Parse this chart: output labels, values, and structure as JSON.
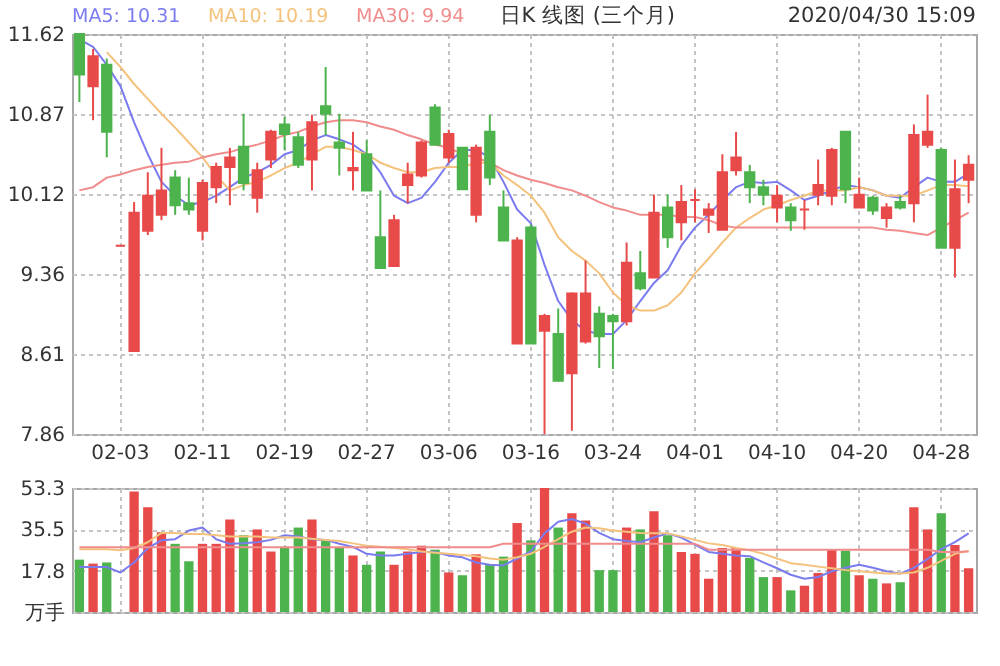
{
  "chart_data": [
    {
      "type": "candlestick",
      "title": "日K 线图 (三个月)",
      "annotations": [
        "2020/04/30 15:09"
      ],
      "categories": [
        null,
        null,
        null,
        "02-03",
        null,
        null,
        null,
        null,
        null,
        "02-11",
        null,
        null,
        null,
        null,
        null,
        "02-19",
        null,
        null,
        null,
        null,
        null,
        "02-27",
        null,
        null,
        null,
        null,
        null,
        "03-06",
        null,
        null,
        null,
        null,
        null,
        "03-16",
        null,
        null,
        null,
        null,
        null,
        "03-24",
        null,
        null,
        null,
        null,
        null,
        "04-01",
        null,
        null,
        null,
        null,
        null,
        "04-10",
        null,
        null,
        null,
        null,
        null,
        "04-20",
        null,
        null,
        null,
        null,
        null,
        "04-28",
        null,
        null
      ],
      "ohlc": [
        [
          11.62,
          11.62,
          10.98,
          11.24
        ],
        [
          11.13,
          11.48,
          10.81,
          11.41
        ],
        [
          11.33,
          11.39,
          10.46,
          10.7
        ],
        [
          9.63,
          9.63,
          9.63,
          9.63
        ],
        [
          8.64,
          10.04,
          8.64,
          9.94
        ],
        [
          9.77,
          10.32,
          9.73,
          10.1
        ],
        [
          9.92,
          10.55,
          9.87,
          10.15
        ],
        [
          10.27,
          10.34,
          9.92,
          10.01
        ],
        [
          10.03,
          10.27,
          9.92,
          9.97
        ],
        [
          9.77,
          10.25,
          9.68,
          10.22
        ],
        [
          10.18,
          10.41,
          10.03,
          10.37
        ],
        [
          10.37,
          10.55,
          10.01,
          10.46
        ],
        [
          10.56,
          10.87,
          10.15,
          10.22
        ],
        [
          10.08,
          10.41,
          9.94,
          10.34
        ],
        [
          10.44,
          10.72,
          10.36,
          10.7
        ],
        [
          10.77,
          10.84,
          10.53,
          10.68
        ],
        [
          10.65,
          10.7,
          10.36,
          10.39
        ],
        [
          10.44,
          10.86,
          10.15,
          10.79
        ],
        [
          10.94,
          11.31,
          10.67,
          10.87
        ],
        [
          10.6,
          10.87,
          10.29,
          10.55
        ],
        [
          10.34,
          10.7,
          10.15,
          10.36
        ],
        [
          10.49,
          10.62,
          10.15,
          10.15
        ],
        [
          9.71,
          10.15,
          9.42,
          9.42
        ],
        [
          9.44,
          9.92,
          9.44,
          9.87
        ],
        [
          10.2,
          10.41,
          10.03,
          10.3
        ],
        [
          10.29,
          10.62,
          10.27,
          10.6
        ],
        [
          10.93,
          10.96,
          10.58,
          10.58
        ],
        [
          10.46,
          10.72,
          10.41,
          10.68
        ],
        [
          10.55,
          10.55,
          10.16,
          10.16
        ],
        [
          9.92,
          10.58,
          9.85,
          10.55
        ],
        [
          10.7,
          10.86,
          10.2,
          10.27
        ],
        [
          9.99,
          10.15,
          9.68,
          9.68
        ],
        [
          8.71,
          9.71,
          8.71,
          9.68
        ],
        [
          9.8,
          9.83,
          8.71,
          8.71
        ],
        [
          8.83,
          8.99,
          7.86,
          8.97
        ],
        [
          8.8,
          9.04,
          8.35,
          8.36
        ],
        [
          8.43,
          9.19,
          7.89,
          9.18
        ],
        [
          8.73,
          9.49,
          8.71,
          9.18
        ],
        [
          8.99,
          9.06,
          8.48,
          8.78
        ],
        [
          8.97,
          8.99,
          8.47,
          8.92
        ],
        [
          8.92,
          9.66,
          8.88,
          9.47
        ],
        [
          9.37,
          9.58,
          9.21,
          9.23
        ],
        [
          9.33,
          10.11,
          9.33,
          9.94
        ],
        [
          9.99,
          10.11,
          9.61,
          9.71
        ],
        [
          9.85,
          10.2,
          9.68,
          10.04
        ],
        [
          10.06,
          10.16,
          9.85,
          10.06
        ],
        [
          9.92,
          10.03,
          9.75,
          9.97
        ],
        [
          9.78,
          10.49,
          9.78,
          10.32
        ],
        [
          10.34,
          10.7,
          10.29,
          10.46
        ],
        [
          10.32,
          10.39,
          10.03,
          10.18
        ],
        [
          10.18,
          10.25,
          10.01,
          10.11
        ],
        [
          9.99,
          10.2,
          9.85,
          10.1
        ],
        [
          9.99,
          10.03,
          9.77,
          9.87
        ],
        [
          9.97,
          10.06,
          9.78,
          9.97
        ],
        [
          10.11,
          10.44,
          10.01,
          10.2
        ],
        [
          10.1,
          10.55,
          10.01,
          10.53
        ],
        [
          10.7,
          10.7,
          10.03,
          10.16
        ],
        [
          9.99,
          10.27,
          9.99,
          10.11
        ],
        [
          10.08,
          10.1,
          9.92,
          9.96
        ],
        [
          9.89,
          10.03,
          9.8,
          9.99
        ],
        [
          10.04,
          10.1,
          9.97,
          9.99
        ],
        [
          10.03,
          10.77,
          9.85,
          10.67
        ],
        [
          10.58,
          11.05,
          10.55,
          10.7
        ],
        [
          10.53,
          10.55,
          9.61,
          9.61
        ],
        [
          9.61,
          10.44,
          9.33,
          10.16
        ],
        [
          10.25,
          10.48,
          10.03,
          10.39
        ]
      ],
      "colors": [
        "#4db34d",
        "#e84a4a",
        "#4db34d",
        "#e84a4a",
        "#e84a4a",
        "#e84a4a",
        "#e84a4a",
        "#4db34d",
        "#4db34d",
        "#e84a4a",
        "#e84a4a",
        "#e84a4a",
        "#4db34d",
        "#e84a4a",
        "#e84a4a",
        "#4db34d",
        "#4db34d",
        "#e84a4a",
        "#4db34d",
        "#4db34d",
        "#e84a4a",
        "#4db34d",
        "#4db34d",
        "#e84a4a",
        "#e84a4a",
        "#e84a4a",
        "#4db34d",
        "#e84a4a",
        "#4db34d",
        "#e84a4a",
        "#4db34d",
        "#4db34d",
        "#e84a4a",
        "#4db34d",
        "#e84a4a",
        "#4db34d",
        "#e84a4a",
        "#e84a4a",
        "#4db34d",
        "#4db34d",
        "#e84a4a",
        "#4db34d",
        "#e84a4a",
        "#4db34d",
        "#e84a4a",
        "#e84a4a",
        "#e84a4a",
        "#e84a4a",
        "#e84a4a",
        "#4db34d",
        "#4db34d",
        "#e84a4a",
        "#4db34d",
        "#e84a4a",
        "#e84a4a",
        "#e84a4a",
        "#4db34d",
        "#e84a4a",
        "#4db34d",
        "#e84a4a",
        "#4db34d",
        "#e84a4a",
        "#e84a4a",
        "#4db34d",
        "#e84a4a",
        "#e84a4a"
      ],
      "series": [
        {
          "type": "line",
          "name": "MA5: 10.31",
          "color": "#7b7bf0",
          "values": [
            11.57,
            11.5,
            11.33,
            11.13,
            10.79,
            10.49,
            10.23,
            10.1,
            10.01,
            10.04,
            10.1,
            10.18,
            10.27,
            10.32,
            10.39,
            10.49,
            10.53,
            10.62,
            10.67,
            10.63,
            10.58,
            10.49,
            10.32,
            10.1,
            10.03,
            10.08,
            10.23,
            10.41,
            10.53,
            10.53,
            10.46,
            10.23,
            9.97,
            9.84,
            9.45,
            9.11,
            8.93,
            8.83,
            8.8,
            8.8,
            8.93,
            9.11,
            9.28,
            9.4,
            9.63,
            9.8,
            9.92,
            10.06,
            10.18,
            10.23,
            10.22,
            10.23,
            10.15,
            10.06,
            10.1,
            10.15,
            10.2,
            10.18,
            10.15,
            10.1,
            10.08,
            10.18,
            10.27,
            10.23,
            10.23,
            10.31
          ]
        },
        {
          "type": "line",
          "name": "MA10: 10.19",
          "color": "#f5c27d",
          "values": [
            null,
            null,
            11.45,
            11.31,
            11.15,
            11.01,
            10.87,
            10.74,
            10.6,
            10.46,
            10.29,
            10.15,
            10.2,
            10.23,
            10.29,
            10.36,
            10.41,
            10.49,
            10.56,
            10.56,
            10.53,
            10.49,
            10.41,
            10.36,
            10.32,
            10.32,
            10.36,
            10.37,
            10.37,
            10.41,
            10.41,
            10.29,
            10.2,
            10.1,
            9.94,
            9.71,
            9.58,
            9.49,
            9.37,
            9.19,
            9.07,
            9.02,
            9.02,
            9.07,
            9.19,
            9.37,
            9.51,
            9.66,
            9.8,
            9.89,
            9.97,
            10.01,
            10.06,
            10.1,
            10.15,
            10.15,
            10.15,
            10.18,
            10.15,
            10.1,
            10.1,
            10.1,
            10.15,
            10.2,
            10.2,
            10.19
          ]
        },
        {
          "type": "line",
          "name": "MA30: 9.94",
          "color": "#f08c8c",
          "values": [
            10.15,
            10.18,
            10.27,
            10.3,
            10.34,
            10.37,
            10.39,
            10.41,
            10.42,
            10.46,
            10.49,
            10.51,
            10.55,
            10.58,
            10.62,
            10.67,
            10.7,
            10.75,
            10.79,
            10.81,
            10.81,
            10.79,
            10.75,
            10.72,
            10.67,
            10.63,
            10.58,
            10.55,
            10.49,
            10.46,
            10.41,
            10.34,
            10.29,
            10.25,
            10.22,
            10.18,
            10.15,
            10.1,
            10.04,
            9.99,
            9.96,
            9.92,
            9.92,
            9.92,
            9.9,
            9.9,
            9.87,
            9.82,
            9.8,
            9.8,
            9.8,
            9.8,
            9.8,
            9.8,
            9.8,
            9.8,
            9.8,
            9.8,
            9.8,
            9.78,
            9.77,
            9.75,
            9.73,
            9.8,
            9.87,
            9.94
          ]
        }
      ],
      "ylim": [
        7.86,
        11.62
      ],
      "yticks": [
        7.86,
        8.61,
        9.36,
        10.12,
        10.87,
        11.62
      ],
      "grid": true,
      "legend": "top left"
    },
    {
      "type": "bar",
      "categories": [
        null,
        null,
        null,
        null,
        null,
        null,
        null,
        null,
        null,
        null,
        null,
        null,
        null,
        null,
        null,
        null,
        null,
        null,
        null,
        null,
        null,
        null,
        null,
        null,
        null,
        null,
        null,
        null,
        null,
        null,
        null,
        null,
        null,
        null,
        null,
        null,
        null,
        null,
        null,
        null,
        null,
        null,
        null,
        null,
        null,
        null,
        null,
        null,
        null,
        null,
        null,
        null,
        null,
        null,
        null,
        null,
        null,
        null,
        null,
        null,
        null,
        null,
        null,
        null,
        null,
        null
      ],
      "values": [
        22.5,
        20.8,
        21.3,
        null,
        51.8,
        45.0,
        34.3,
        29.3,
        21.8,
        29.3,
        29.3,
        39.8,
        33.0,
        35.5,
        26.0,
        28.0,
        36.3,
        39.8,
        30.8,
        28.0,
        24.3,
        20.3,
        26.0,
        20.3,
        26.0,
        28.5,
        26.8,
        17.0,
        15.8,
        24.8,
        20.3,
        23.8,
        38.3,
        30.8,
        53.3,
        36.3,
        42.5,
        39.3,
        18.0,
        18.0,
        36.3,
        35.5,
        43.3,
        33.0,
        25.8,
        25.0,
        14.3,
        27.5,
        27.5,
        23.3,
        15.0,
        15.0,
        9.3,
        11.3,
        16.8,
        26.8,
        26.3,
        15.8,
        14.3,
        12.3,
        12.8,
        45.0,
        35.5,
        42.5,
        28.8,
        18.8
      ],
      "colors": [
        "#4db34d",
        "#e84a4a",
        "#4db34d",
        "#e84a4a",
        "#e84a4a",
        "#e84a4a",
        "#e84a4a",
        "#4db34d",
        "#4db34d",
        "#e84a4a",
        "#e84a4a",
        "#e84a4a",
        "#4db34d",
        "#e84a4a",
        "#e84a4a",
        "#4db34d",
        "#4db34d",
        "#e84a4a",
        "#4db34d",
        "#4db34d",
        "#e84a4a",
        "#4db34d",
        "#4db34d",
        "#e84a4a",
        "#e84a4a",
        "#e84a4a",
        "#4db34d",
        "#e84a4a",
        "#4db34d",
        "#e84a4a",
        "#4db34d",
        "#4db34d",
        "#e84a4a",
        "#4db34d",
        "#e84a4a",
        "#4db34d",
        "#e84a4a",
        "#e84a4a",
        "#4db34d",
        "#4db34d",
        "#e84a4a",
        "#4db34d",
        "#e84a4a",
        "#4db34d",
        "#e84a4a",
        "#e84a4a",
        "#e84a4a",
        "#e84a4a",
        "#e84a4a",
        "#4db34d",
        "#4db34d",
        "#e84a4a",
        "#4db34d",
        "#e84a4a",
        "#e84a4a",
        "#e84a4a",
        "#4db34d",
        "#e84a4a",
        "#4db34d",
        "#e84a4a",
        "#4db34d",
        "#e84a4a",
        "#e84a4a",
        "#4db34d",
        "#e84a4a",
        "#e84a4a"
      ],
      "series": [
        {
          "type": "line",
          "color": "#7b7bf0",
          "values": [
            19.3,
            19.3,
            19.3,
            17.0,
            21.3,
            27.5,
            30.8,
            31.3,
            35.0,
            36.3,
            31.3,
            29.3,
            29.5,
            30.0,
            31.0,
            33.0,
            32.5,
            31.3,
            31.0,
            29.3,
            28.0,
            25.0,
            24.3,
            24.3,
            25.0,
            25.8,
            25.8,
            24.3,
            23.5,
            21.3,
            20.3,
            20.0,
            23.0,
            26.0,
            33.8,
            38.8,
            40.0,
            38.0,
            34.0,
            31.3,
            30.5,
            30.0,
            32.0,
            33.8,
            32.0,
            29.0,
            25.8,
            25.0,
            24.3,
            24.0,
            21.3,
            18.8,
            16.0,
            14.3,
            15.0,
            17.5,
            19.0,
            20.3,
            19.0,
            17.5,
            16.5,
            19.0,
            22.8,
            27.0,
            30.0,
            33.8
          ]
        },
        {
          "type": "line",
          "color": "#f5c27d",
          "values": [
            27.0,
            27.0,
            27.0,
            26.5,
            27.5,
            30.0,
            34.0,
            34.0,
            33.5,
            33.5,
            33.0,
            32.5,
            32.5,
            32.5,
            32.0,
            32.0,
            32.0,
            31.5,
            31.0,
            30.5,
            29.5,
            28.5,
            28.0,
            27.5,
            27.0,
            26.0,
            25.5,
            25.0,
            24.5,
            24.0,
            23.0,
            22.5,
            23.5,
            25.0,
            28.0,
            31.3,
            34.5,
            36.3,
            36.0,
            35.0,
            34.5,
            34.0,
            33.8,
            33.8,
            32.5,
            31.0,
            29.5,
            28.8,
            27.5,
            26.5,
            25.0,
            23.0,
            21.0,
            20.3,
            19.5,
            18.8,
            18.0,
            17.5,
            17.0,
            16.5,
            16.5,
            17.0,
            19.0,
            22.0,
            25.0,
            26.3
          ]
        },
        {
          "type": "line",
          "color": "#f08c8c",
          "values": [
            27.8,
            27.8,
            27.8,
            27.8,
            27.8,
            27.8,
            27.8,
            27.8,
            27.8,
            27.8,
            27.8,
            27.8,
            27.8,
            27.8,
            27.8,
            27.8,
            27.8,
            27.8,
            27.8,
            27.8,
            27.8,
            27.8,
            27.8,
            27.8,
            27.8,
            27.8,
            27.8,
            27.8,
            27.8,
            27.8,
            27.8,
            29.3,
            29.3,
            29.3,
            29.3,
            29.3,
            29.3,
            29.3,
            29.3,
            29.3,
            29.3,
            29.3,
            29.3,
            29.3,
            29.3,
            29.3,
            26.8,
            26.8,
            26.8,
            26.8,
            26.8,
            26.8,
            26.8,
            26.8,
            26.8,
            26.8,
            26.8,
            26.8,
            26.8,
            26.8,
            26.8,
            26.8,
            26.8,
            25.8,
            25.8,
            26.0
          ]
        }
      ],
      "ylim": [
        0,
        53.3
      ],
      "yticks": [
        {
          "value": 0,
          "label": "万手"
        },
        17.8,
        35.5,
        53.3
      ],
      "grid": true,
      "tick_labels": "y"
    }
  ]
}
